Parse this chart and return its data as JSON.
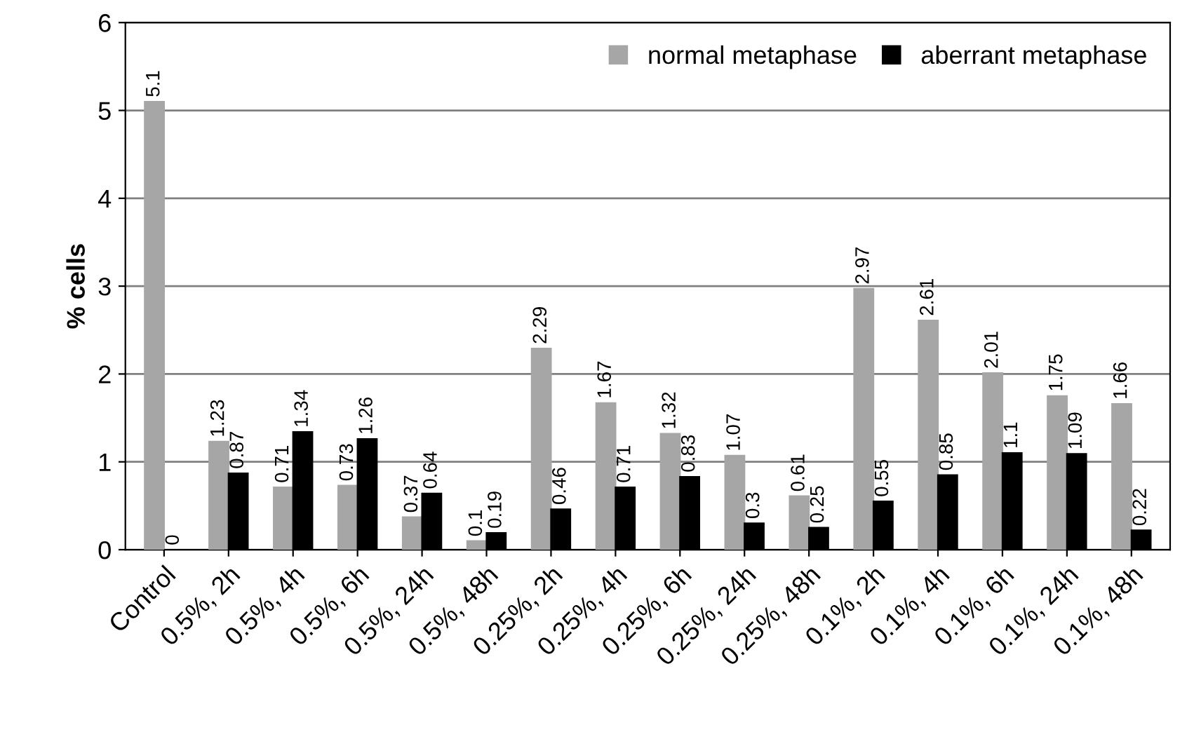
{
  "chart_data": {
    "type": "bar",
    "ylabel": "% cells",
    "categories": [
      "Control",
      "0.5%, 2h",
      "0.5%, 4h",
      "0.5%, 6h",
      "0.5%, 24h",
      "0.5%, 48h",
      "0.25%, 2h",
      "0.25%, 4h",
      "0.25%, 6h",
      "0.25%, 24h",
      "0.25%, 48h",
      "0.1%, 2h",
      "0.1%, 4h",
      "0.1%, 6h",
      "0.1%, 24h",
      "0.1%, 48h"
    ],
    "series": [
      {
        "name": "normal metaphase",
        "color": "#a6a6a6",
        "values": [
          5.1,
          1.23,
          0.71,
          0.73,
          0.37,
          0.1,
          2.29,
          1.67,
          1.32,
          1.07,
          0.61,
          2.97,
          2.61,
          2.01,
          1.75,
          1.66
        ]
      },
      {
        "name": "aberrant metaphase",
        "color": "#000000",
        "values": [
          0,
          0.87,
          1.34,
          1.26,
          0.64,
          0.19,
          0.46,
          0.71,
          0.83,
          0.3,
          0.25,
          0.55,
          0.85,
          1.1,
          1.09,
          0.22
        ]
      }
    ],
    "ylim": [
      0,
      6
    ],
    "yticks": [
      0,
      1,
      2,
      3,
      4,
      5,
      6
    ],
    "grid": "y",
    "legend": "top right",
    "data_labels": true
  }
}
